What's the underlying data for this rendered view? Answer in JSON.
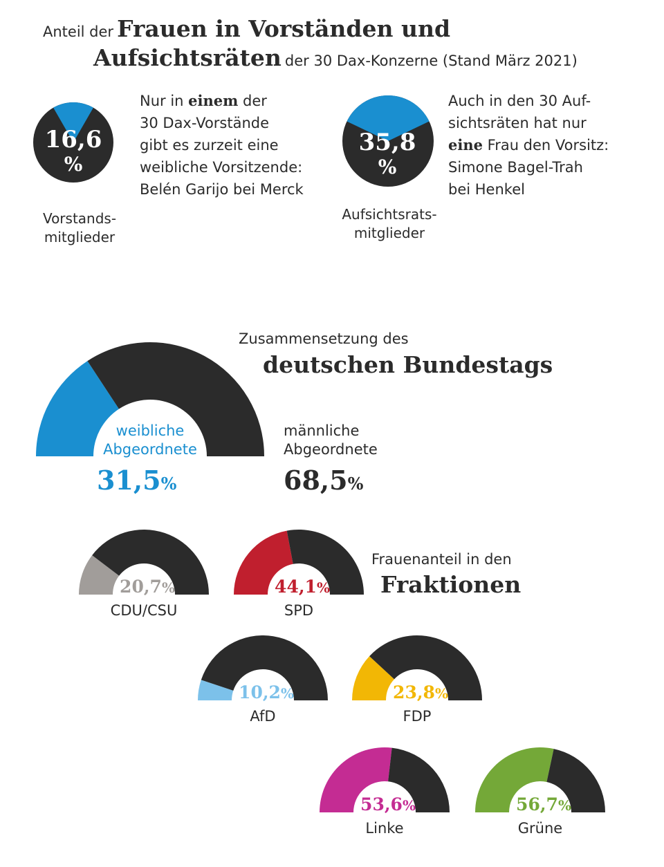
{
  "header": {
    "line1_prefix": "Anteil der",
    "line1_bold": "Frauen in Vorständen und",
    "line2_bold": "Aufsichtsräten",
    "line2_suffix": "der 30 Dax-Konzerne (Stand März 2021)"
  },
  "vorstand": {
    "value_text": "16,6",
    "pct_sign": "%",
    "caption_line1": "Vorstands-",
    "caption_line2": "mitglieder",
    "text": [
      [
        "Nur in ",
        "einem",
        " der"
      ],
      [
        "30 Dax-Vorstände"
      ],
      [
        "gibt es zurzeit eine"
      ],
      [
        "weibliche Vorsitzende:"
      ],
      [
        "Belén Garijo bei Merck"
      ]
    ]
  },
  "aufsichtsrat": {
    "value_text": "35,8",
    "pct_sign": "%",
    "caption_line1": "Aufsichtsrats-",
    "caption_line2": "mitglieder",
    "text": [
      [
        "Auch in den 30 Auf-"
      ],
      [
        "sichtsräten hat nur"
      ],
      [
        "",
        "eine",
        " Frau den Vorsitz:"
      ],
      [
        "Simone Bagel-Trah"
      ],
      [
        "bei Henkel"
      ]
    ]
  },
  "bundestag": {
    "title_small": "Zusammensetzung des",
    "title_big": "deutschen Bundestags",
    "female_label_1": "weibliche",
    "female_label_2": "Abgeordnete",
    "female_value": "31,5",
    "male_label_1": "männliche",
    "male_label_2": "Abgeordnete",
    "male_value": "68,5",
    "pct_sign": "%"
  },
  "fraktionen": {
    "title_small": "Frauenanteil in den",
    "title_big": "Fraktionen",
    "pct_sign": "%"
  },
  "colors": {
    "dark": "#2b2b2b",
    "blue": "#1a8fd0",
    "gray": "#a19d9a",
    "red": "#c01f2e",
    "lightblue": "#7cc1ea",
    "yellow": "#f2b705",
    "magenta": "#c42c93",
    "green": "#74a838"
  },
  "chart_data": [
    {
      "type": "pie",
      "title": "Anteil der Frauen in Vorständen und Aufsichtsräten der 30 Dax-Konzerne (Stand März 2021)",
      "slices": [
        {
          "name": "Vorstandsmitglieder",
          "value": 16.6
        },
        {
          "name": "Aufsichtsratsmitglieder",
          "value": 35.8
        }
      ]
    },
    {
      "type": "pie",
      "subtype": "semicircle",
      "title": "Zusammensetzung des deutschen Bundestags",
      "slices": [
        {
          "name": "weibliche Abgeordnete",
          "value": 31.5,
          "color": "#1a8fd0"
        },
        {
          "name": "männliche Abgeordnete",
          "value": 68.5,
          "color": "#2b2b2b"
        }
      ]
    },
    {
      "type": "pie",
      "subtype": "semicircle",
      "title": "Frauenanteil in den Fraktionen",
      "categories": [
        "CDU/CSU",
        "SPD",
        "AfD",
        "FDP",
        "Linke",
        "Grüne"
      ],
      "values": [
        20.7,
        44.1,
        10.2,
        23.8,
        53.6,
        56.7
      ],
      "value_labels": [
        "20,7",
        "44,1",
        "10,2",
        "23,8",
        "53,6",
        "56,7"
      ],
      "colors": [
        "#a19d9a",
        "#c01f2e",
        "#7cc1ea",
        "#f2b705",
        "#c42c93",
        "#74a838"
      ]
    }
  ]
}
